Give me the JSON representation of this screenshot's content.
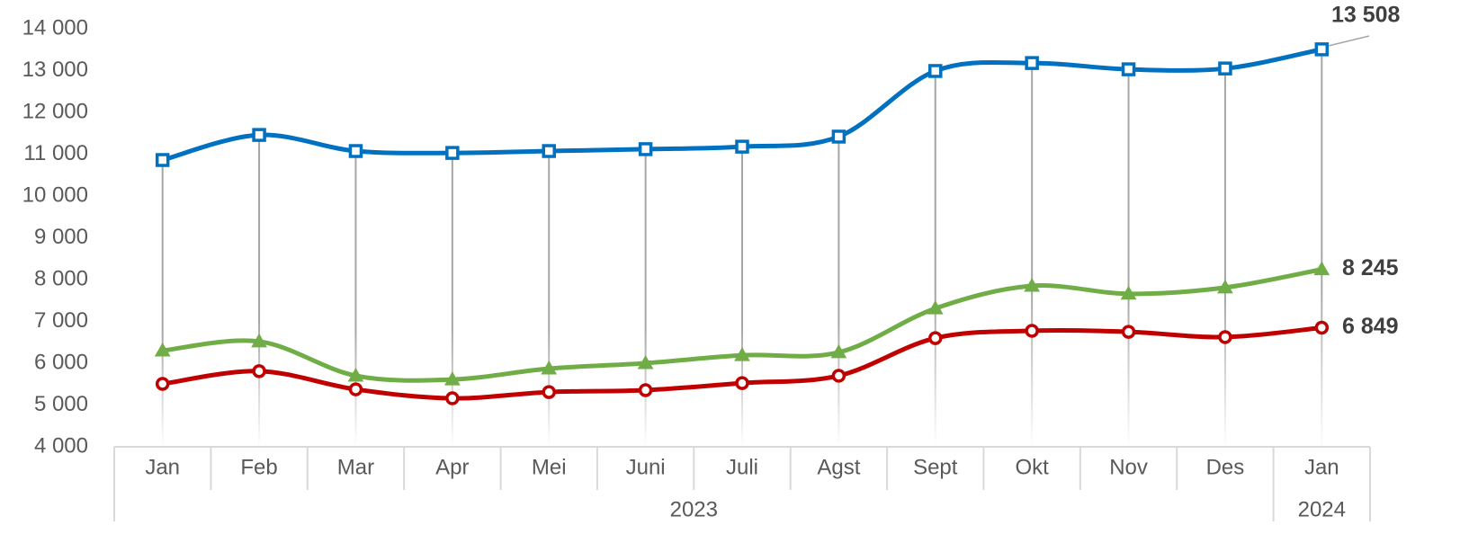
{
  "chart_data": {
    "type": "line",
    "categories": [
      "Jan",
      "Feb",
      "Mar",
      "Apr",
      "Mei",
      "Juni",
      "Juli",
      "Agst",
      "Sept",
      "Okt",
      "Nov",
      "Des",
      "Jan"
    ],
    "x_groups": [
      {
        "label": "2023",
        "count": 12
      },
      {
        "label": "2024",
        "count": 1
      }
    ],
    "series": [
      {
        "color": "#0070c0",
        "marker": "square",
        "values": [
          10860,
          11460,
          11075,
          11030,
          11075,
          11120,
          11180,
          11420,
          12990,
          13180,
          13030,
          13050,
          13508
        ],
        "value_labels": [
          null,
          null,
          null,
          null,
          null,
          null,
          null,
          null,
          null,
          null,
          null,
          null,
          "13 508"
        ]
      },
      {
        "color": "#70ad47",
        "marker": "triangle",
        "values": [
          6300,
          6520,
          5700,
          5610,
          5870,
          6000,
          6190,
          6260,
          7310,
          7850,
          7660,
          7810,
          8245
        ],
        "value_labels": [
          null,
          null,
          null,
          null,
          null,
          null,
          null,
          null,
          null,
          null,
          null,
          null,
          "8 245"
        ]
      },
      {
        "color": "#c00000",
        "marker": "circle",
        "values": [
          5505,
          5810,
          5375,
          5160,
          5310,
          5355,
          5525,
          5700,
          6600,
          6775,
          6750,
          6625,
          6849
        ],
        "value_labels": [
          null,
          null,
          null,
          null,
          null,
          null,
          null,
          null,
          null,
          null,
          null,
          null,
          "6 849"
        ]
      }
    ],
    "ylim": [
      4000,
      14000
    ],
    "yticks": [
      {
        "value": 4000,
        "label": "4 000"
      },
      {
        "value": 5000,
        "label": "5 000"
      },
      {
        "value": 6000,
        "label": "6 000"
      },
      {
        "value": 7000,
        "label": "7 000"
      },
      {
        "value": 8000,
        "label": "8 000"
      },
      {
        "value": 9000,
        "label": "9 000"
      },
      {
        "value": 10000,
        "label": "10 000"
      },
      {
        "value": 11000,
        "label": "11 000"
      },
      {
        "value": 12000,
        "label": "12 000"
      },
      {
        "value": 13000,
        "label": "13 000"
      },
      {
        "value": 14000,
        "label": "14 000"
      }
    ],
    "drop_lines": true,
    "smooth": true
  }
}
